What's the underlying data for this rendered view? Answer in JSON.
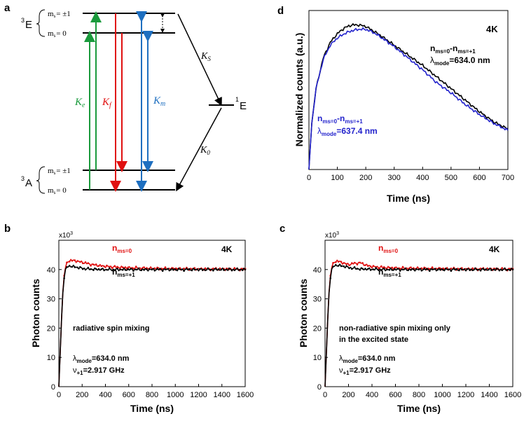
{
  "panels": {
    "a": {
      "label": "a",
      "levels": {
        "E_term_pre": "3",
        "E_term": "E",
        "A_term_pre": "3",
        "A_term": "A",
        "singlet_pre": "1",
        "singlet": "E",
        "ms_pm1": "m",
        "ms_sub": "s",
        "ms_pm1_val": "= ±1",
        "ms_0_val": "= 0"
      },
      "rates": {
        "Ke": "K",
        "Ke_sub": "e",
        "Kf": "K",
        "Kf_sub": "f",
        "Km": "K",
        "Km_sub": "m",
        "Ks": "K",
        "Ks_sub": "S",
        "K0": "K",
        "K0_sub": "0"
      },
      "colors": {
        "Ke": "#1a9a3c",
        "Kf": "#e01010",
        "Km": "#1e6fc0"
      }
    },
    "b": {
      "label": "b",
      "exp_label": "x10",
      "exp_sup": "3",
      "temp": "4K",
      "legend_red": "n",
      "legend_red_sub": "ms=0",
      "legend_black": "n",
      "legend_black_sub": "ms=+1",
      "note": "radiative spin mixing",
      "lambda": "λ",
      "lambda_sub": "mode",
      "lambda_val": "=634.0 nm",
      "nu": "ν",
      "nu_sub": "+1",
      "nu_val": "=2.917 GHz"
    },
    "c": {
      "label": "c",
      "exp_label": "x10",
      "exp_sup": "3",
      "temp": "4K",
      "legend_red": "n",
      "legend_red_sub": "ms=0",
      "legend_black": "n",
      "legend_black_sub": "ms=+1",
      "note_line1": "non-radiative spin mixing only",
      "note_line2": "in the excited state",
      "lambda": "λ",
      "lambda_sub": "mode",
      "lambda_val": "=634.0 nm",
      "nu": "ν",
      "nu_sub": "+1",
      "nu_val": "=2.917 GHz"
    },
    "d": {
      "label": "d",
      "temp": "4K",
      "legend_black": "n",
      "legend_black_sub1": "ms=0",
      "legend_black_mid": "-n",
      "legend_black_sub2": "ms=+1",
      "legend_black_lambda": "λ",
      "legend_black_lambda_sub": "mode",
      "legend_black_lambda_val": "=634.0 nm",
      "legend_blue": "n",
      "legend_blue_sub1": "ms=0",
      "legend_blue_mid": "-n",
      "legend_blue_sub2": "ms=+1",
      "legend_blue_lambda": "λ",
      "legend_blue_lambda_sub": "mode",
      "legend_blue_lambda_val": "=637.4 nm"
    }
  },
  "chart_data": [
    {
      "id": "d",
      "type": "line",
      "xlabel": "Time (ns)",
      "ylabel": "Normalized counts (a.u.)",
      "xlim": [
        0,
        700
      ],
      "xticks": [
        "0",
        "100",
        "200",
        "300",
        "400",
        "500",
        "600",
        "700"
      ],
      "series": [
        {
          "name": "n_ms=0 - n_ms=+1, λmode=634.0 nm",
          "color": "#000000",
          "x": [
            0,
            10,
            25,
            50,
            75,
            100,
            125,
            150,
            175,
            200,
            225,
            250,
            300,
            350,
            400,
            450,
            500,
            550,
            600,
            650,
            700
          ],
          "y": [
            0.0,
            0.32,
            0.56,
            0.77,
            0.88,
            0.94,
            0.98,
            1.0,
            1.0,
            0.99,
            0.96,
            0.93,
            0.86,
            0.79,
            0.72,
            0.64,
            0.56,
            0.48,
            0.4,
            0.33,
            0.28
          ]
        },
        {
          "name": "n_ms=0 - n_ms=+1, λmode=637.4 nm",
          "color": "#2222cc",
          "x": [
            0,
            10,
            25,
            50,
            75,
            100,
            125,
            150,
            175,
            200,
            225,
            250,
            300,
            350,
            400,
            450,
            500,
            550,
            600,
            650,
            700
          ],
          "y": [
            0.0,
            0.32,
            0.56,
            0.76,
            0.86,
            0.91,
            0.94,
            0.96,
            0.97,
            0.97,
            0.95,
            0.92,
            0.85,
            0.77,
            0.69,
            0.6,
            0.53,
            0.45,
            0.38,
            0.32,
            0.27
          ]
        }
      ]
    },
    {
      "id": "b",
      "type": "line",
      "xlabel": "Time (ns)",
      "ylabel": "Photon counts",
      "xlim": [
        0,
        1600
      ],
      "ylim": [
        0,
        50
      ],
      "xticks": [
        "0",
        "200",
        "400",
        "600",
        "800",
        "1000",
        "1200",
        "1400",
        "1600"
      ],
      "yticks": [
        "0",
        "10",
        "20",
        "30",
        "40"
      ],
      "series": [
        {
          "name": "n_ms=0",
          "color": "#e01010",
          "x": [
            0,
            30,
            50,
            75,
            100,
            150,
            200,
            250,
            300,
            400,
            500,
            600,
            800,
            1000,
            1200,
            1400,
            1600
          ],
          "y": [
            0,
            30,
            40,
            42.7,
            43.2,
            42.9,
            42.5,
            42.0,
            41.6,
            41.1,
            40.8,
            40.6,
            40.4,
            40.3,
            40.2,
            40.2,
            40.1
          ]
        },
        {
          "name": "n_ms=+1",
          "color": "#000000",
          "x": [
            0,
            30,
            50,
            75,
            100,
            150,
            200,
            250,
            300,
            400,
            500,
            600,
            800,
            1000,
            1200,
            1400,
            1600
          ],
          "y": [
            0,
            30,
            39.5,
            41.0,
            41.2,
            40.8,
            40.4,
            40.2,
            40.1,
            40.0,
            40.0,
            40.0,
            40.0,
            40.0,
            40.0,
            40.0,
            40.0
          ]
        }
      ]
    },
    {
      "id": "c",
      "type": "line",
      "xlabel": "Time (ns)",
      "ylabel": "Photon counts",
      "xlim": [
        0,
        1600
      ],
      "ylim": [
        0,
        50
      ],
      "xticks": [
        "0",
        "200",
        "400",
        "600",
        "800",
        "1000",
        "1200",
        "1400",
        "1600"
      ],
      "yticks": [
        "0",
        "10",
        "20",
        "30",
        "40"
      ],
      "series": [
        {
          "name": "n_ms=0",
          "color": "#e01010",
          "x": [
            0,
            30,
            50,
            75,
            100,
            150,
            200,
            250,
            300,
            350,
            400,
            500,
            600,
            800,
            1000,
            1200,
            1400,
            1600
          ],
          "y": [
            0,
            30,
            40,
            42.5,
            43.0,
            42.3,
            41.7,
            42.1,
            42.3,
            41.5,
            41.0,
            40.7,
            40.5,
            40.4,
            40.3,
            40.2,
            40.2,
            40.1
          ]
        },
        {
          "name": "n_ms=+1",
          "color": "#000000",
          "x": [
            0,
            30,
            50,
            75,
            100,
            150,
            200,
            250,
            300,
            400,
            500,
            600,
            800,
            1000,
            1200,
            1400,
            1600
          ],
          "y": [
            0,
            30,
            39.5,
            41.2,
            41.5,
            41.2,
            40.7,
            40.4,
            40.2,
            40.1,
            40.0,
            40.0,
            40.0,
            40.0,
            40.0,
            40.0,
            40.0
          ]
        }
      ]
    }
  ]
}
